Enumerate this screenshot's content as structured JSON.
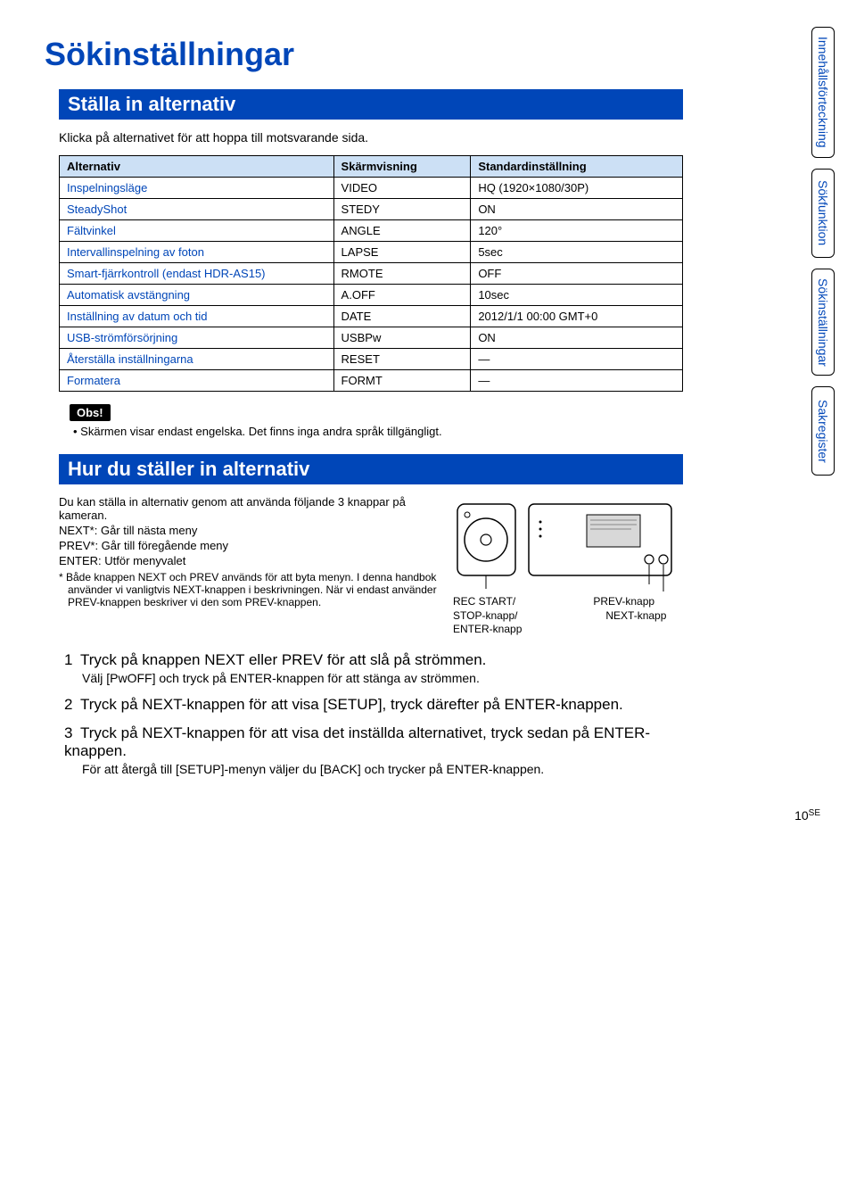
{
  "title": "Sökinställningar",
  "section1": {
    "header": "Ställa in alternativ",
    "intro": "Klicka på alternativet för att hoppa till motsvarande sida."
  },
  "table": {
    "headers": [
      "Alternativ",
      "Skärmvisning",
      "Standardinställning"
    ],
    "rows": [
      [
        "Inspelningsläge",
        "VIDEO",
        "HQ (1920×1080/30P)"
      ],
      [
        "SteadyShot",
        "STEDY",
        "ON"
      ],
      [
        "Fältvinkel",
        "ANGLE",
        "120°"
      ],
      [
        "Intervallinspelning av foton",
        "LAPSE",
        "5sec"
      ],
      [
        "Smart-fjärrkontroll (endast HDR-AS15)",
        "RMOTE",
        "OFF"
      ],
      [
        "Automatisk avstängning",
        "A.OFF",
        "10sec"
      ],
      [
        "Inställning av datum och tid",
        "DATE",
        "2012/1/1 00:00 GMT+0"
      ],
      [
        "USB-strömförsörjning",
        "USBPw",
        "ON"
      ],
      [
        "Återställa inställningarna",
        "RESET",
        "—"
      ],
      [
        "Formatera",
        "FORMT",
        "—"
      ]
    ],
    "col_widths": [
      "44%",
      "22%",
      "34%"
    ],
    "header_bg": "#cce0f5",
    "border_color": "#000000"
  },
  "obs": {
    "label": "Obs!",
    "text": "Skärmen visar endast engelska. Det finns inga andra språk tillgängligt."
  },
  "section2": {
    "header": "Hur du ställer in alternativ",
    "body": [
      "Du kan ställa in alternativ genom att använda följande 3 knappar på kameran.",
      "NEXT*: Går till nästa meny",
      "PREV*: Går till föregående meny",
      "ENTER: Utför menyvalet"
    ],
    "note": "* Både knappen NEXT och PREV används för att byta menyn. I denna handbok använder vi vanligtvis NEXT-knappen i beskrivningen. När vi endast använder PREV-knappen beskriver vi den som PREV-knappen."
  },
  "diagram": {
    "labels": {
      "left": [
        "REC START/",
        "STOP-knapp/",
        "ENTER-knapp"
      ],
      "right_top": "PREV-knapp",
      "right_bottom": "NEXT-knapp"
    },
    "stroke": "#000000",
    "fill": "#ffffff"
  },
  "steps": [
    {
      "num": "1",
      "head": "Tryck på knappen NEXT eller PREV för att slå på strömmen.",
      "sub": "Välj [PwOFF] och tryck på ENTER-knappen för att stänga av strömmen."
    },
    {
      "num": "2",
      "head": "Tryck på NEXT-knappen för att visa [SETUP], tryck därefter på ENTER-knappen.",
      "sub": ""
    },
    {
      "num": "3",
      "head": "Tryck på NEXT-knappen för att visa det inställda alternativet, tryck sedan på ENTER-knappen.",
      "sub": "För att återgå till [SETUP]-menyn väljer du [BACK] och trycker på ENTER-knappen."
    }
  ],
  "sidebar_tabs": [
    "Innehållsförteckning",
    "Sökfunktion",
    "Sökinställningar",
    "Sakregister"
  ],
  "footer": {
    "page": "10",
    "suffix": "SE"
  },
  "colors": {
    "brand_blue": "#0046b8",
    "header_bg": "#cce0f5",
    "black": "#000000",
    "white": "#ffffff"
  }
}
